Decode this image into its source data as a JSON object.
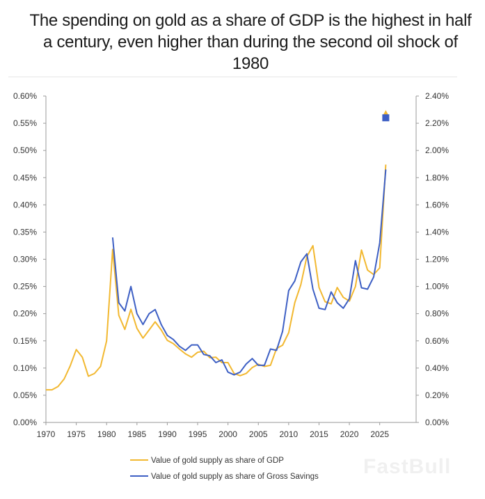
{
  "title": "The spending on gold as a share of GDP is the highest in half a century, even higher than during the second oil shock of 1980",
  "watermark": "FastBull",
  "chart_data": {
    "type": "line",
    "title": "The spending on gold as a share of GDP is the highest in half a century, even higher than during the second oil shock of 1980",
    "xlabel": "",
    "ylabel_left": "",
    "ylabel_right": "",
    "xlim": [
      1970,
      2031
    ],
    "ylim_left": [
      0,
      0.6
    ],
    "ylim_right": [
      0,
      2.4
    ],
    "x_ticks": [
      1970,
      1975,
      1980,
      1985,
      1990,
      1995,
      2000,
      2005,
      2010,
      2015,
      2020,
      2025
    ],
    "x_tick_labels": [
      "1970",
      "1975",
      "1980",
      "1985",
      "1990",
      "1995",
      "2000",
      "2005",
      "2010",
      "2015",
      "2020",
      "2025"
    ],
    "y_left_ticks": [
      0,
      0.05,
      0.1,
      0.15,
      0.2,
      0.25,
      0.3,
      0.35,
      0.4,
      0.45,
      0.5,
      0.55,
      0.6
    ],
    "y_left_tick_labels": [
      "0.00%",
      "0.05%",
      "0.10%",
      "0.15%",
      "0.20%",
      "0.25%",
      "0.30%",
      "0.35%",
      "0.40%",
      "0.45%",
      "0.50%",
      "0.55%",
      "0.60%"
    ],
    "y_right_ticks": [
      0,
      0.2,
      0.4,
      0.6,
      0.8,
      1.0,
      1.2,
      1.4,
      1.6,
      1.8,
      2.0,
      2.2,
      2.4
    ],
    "y_right_tick_labels": [
      "0.00%",
      "0.20%",
      "0.40%",
      "0.60%",
      "0.80%",
      "1.00%",
      "1.20%",
      "1.40%",
      "1.60%",
      "1.80%",
      "2.00%",
      "2.20%",
      "2.40%"
    ],
    "legend_position": "bottom-left",
    "series": [
      {
        "name": "Value of gold supply as share of GDP",
        "axis": "left",
        "color": "#f2b830",
        "x": [
          1970,
          1971,
          1972,
          1973,
          1974,
          1975,
          1976,
          1977,
          1978,
          1979,
          1980,
          1981,
          1982,
          1983,
          1984,
          1985,
          1986,
          1987,
          1988,
          1989,
          1990,
          1991,
          1992,
          1993,
          1994,
          1995,
          1996,
          1997,
          1998,
          1999,
          2000,
          2001,
          2002,
          2003,
          2004,
          2005,
          2006,
          2007,
          2008,
          2009,
          2010,
          2011,
          2012,
          2013,
          2014,
          2015,
          2016,
          2017,
          2018,
          2019,
          2020,
          2021,
          2022,
          2023,
          2024,
          2025,
          2026
        ],
        "values": [
          0.06,
          0.06,
          0.066,
          0.08,
          0.104,
          0.134,
          0.12,
          0.085,
          0.09,
          0.103,
          0.15,
          0.318,
          0.197,
          0.171,
          0.208,
          0.173,
          0.155,
          0.17,
          0.185,
          0.17,
          0.151,
          0.145,
          0.135,
          0.126,
          0.12,
          0.129,
          0.131,
          0.119,
          0.12,
          0.11,
          0.11,
          0.09,
          0.086,
          0.09,
          0.101,
          0.107,
          0.103,
          0.105,
          0.136,
          0.142,
          0.165,
          0.22,
          0.253,
          0.305,
          0.325,
          0.248,
          0.222,
          0.218,
          0.248,
          0.23,
          0.223,
          0.25,
          0.317,
          0.28,
          0.272,
          0.284,
          0.474
        ]
      },
      {
        "name": "Value of gold supply as share of Gross Savings",
        "axis": "right",
        "color": "#3d5fc4",
        "x": [
          1981,
          1982,
          1983,
          1984,
          1985,
          1986,
          1987,
          1988,
          1989,
          1990,
          1991,
          1992,
          1993,
          1994,
          1995,
          1996,
          1997,
          1998,
          1999,
          2000,
          2001,
          2002,
          2003,
          2004,
          2005,
          2006,
          2007,
          2008,
          2009,
          2010,
          2011,
          2012,
          2013,
          2014,
          2015,
          2016,
          2017,
          2018,
          2019,
          2020,
          2021,
          2022,
          2023,
          2024,
          2025,
          2026
        ],
        "values": [
          1.36,
          0.88,
          0.82,
          1.0,
          0.8,
          0.72,
          0.8,
          0.83,
          0.72,
          0.64,
          0.61,
          0.56,
          0.53,
          0.57,
          0.57,
          0.5,
          0.49,
          0.44,
          0.46,
          0.37,
          0.35,
          0.37,
          0.43,
          0.47,
          0.42,
          0.42,
          0.54,
          0.53,
          0.67,
          0.97,
          1.04,
          1.18,
          1.24,
          0.98,
          0.84,
          0.83,
          0.96,
          0.88,
          0.84,
          0.91,
          1.19,
          0.99,
          0.98,
          1.07,
          1.32,
          1.86
        ]
      }
    ],
    "highlight_points": [
      {
        "series": "Value of gold supply as share of GDP",
        "x": 2026,
        "value": 0.569,
        "marker": "triangle",
        "color": "#f2b830"
      },
      {
        "series": "Value of gold supply as share of Gross Savings",
        "x": 2026,
        "value": 2.24,
        "marker": "square",
        "color": "#3d5fc4"
      }
    ]
  }
}
